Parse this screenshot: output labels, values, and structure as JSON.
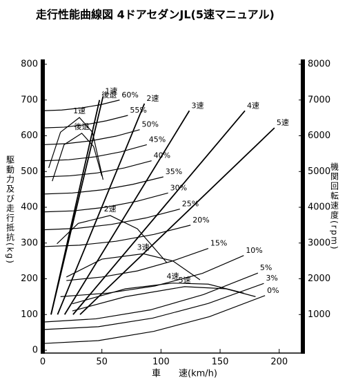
{
  "chart_data": {
    "type": "line",
    "title": "走行性能曲線図 4ドアセダンJL(5速マニュアル)",
    "x_label": "車　　速(km/h)",
    "y_label": "駆動力及び走行抵抗(kg)",
    "y2_label": "機関回転速度(rpm)",
    "color": "#000000",
    "xlim": [
      0,
      220
    ],
    "xticks": [
      0,
      50,
      100,
      150,
      200
    ],
    "ylim": [
      0,
      800
    ],
    "yticks": [
      0,
      100,
      200,
      300,
      400,
      500,
      600,
      700,
      800
    ],
    "y2lim": [
      0,
      8000
    ],
    "y2ticks": [
      1000,
      2000,
      3000,
      4000,
      5000,
      6000,
      7000,
      8000
    ],
    "series": [
      {
        "name": "60%",
        "x": [
          0,
          16,
          33,
          49,
          65
        ],
        "values": [
          670,
          672,
          678,
          687,
          700
        ]
      },
      {
        "name": "55%",
        "x": [
          0,
          18,
          36,
          54,
          72
        ],
        "values": [
          622,
          624,
          631,
          642,
          657
        ]
      },
      {
        "name": "50%",
        "x": [
          0,
          20,
          41,
          62,
          82
        ],
        "values": [
          575,
          578,
          586,
          599,
          617
        ]
      },
      {
        "name": "45%",
        "x": [
          0,
          22,
          44,
          66,
          88
        ],
        "values": [
          530,
          533,
          541,
          555,
          575
        ]
      },
      {
        "name": "40%",
        "x": [
          0,
          23,
          46,
          69,
          92
        ],
        "values": [
          485,
          488,
          496,
          510,
          530
        ]
      },
      {
        "name": "35%",
        "x": [
          0,
          25,
          51,
          76,
          102
        ],
        "values": [
          437,
          440,
          449,
          464,
          485
        ]
      },
      {
        "name": "30%",
        "x": [
          0,
          26,
          53,
          80,
          106
        ],
        "values": [
          387,
          390,
          400,
          417,
          440
        ]
      },
      {
        "name": "25%",
        "x": [
          0,
          29,
          58,
          87,
          116
        ],
        "values": [
          337,
          341,
          352,
          370,
          395
        ]
      },
      {
        "name": "20%",
        "x": [
          0,
          31,
          62,
          94,
          125
        ],
        "values": [
          290,
          294,
          305,
          324,
          350
        ]
      },
      {
        "name": "15%",
        "x": [
          20,
          50,
          80,
          110,
          140
        ],
        "values": [
          195,
          205,
          222,
          250,
          285
        ]
      },
      {
        "name": "10%",
        "x": [
          15,
          55,
          95,
          135,
          170
        ],
        "values": [
          150,
          160,
          180,
          215,
          265
        ]
      },
      {
        "name": "5%",
        "x": [
          0,
          45,
          91,
          136,
          182
        ],
        "values": [
          79,
          88,
          113,
          156,
          216
        ]
      },
      {
        "name": "3%",
        "x": [
          0,
          47,
          93,
          140,
          187
        ],
        "values": [
          58,
          66,
          90,
          131,
          187
        ]
      },
      {
        "name": "0%",
        "x": [
          0,
          47,
          94,
          141,
          188
        ],
        "values": [
          19,
          27,
          53,
          94,
          153
        ]
      },
      {
        "name": "1速",
        "x": [
          5,
          15,
          31,
          42,
          51
        ],
        "values": [
          510,
          610,
          651,
          610,
          477
        ]
      },
      {
        "name": "後退",
        "x": [
          8,
          18,
          33,
          43,
          50
        ],
        "values": [
          473,
          575,
          607,
          570,
          487
        ]
      },
      {
        "name": "2速",
        "x": [
          12,
          30,
          57,
          80,
          105
        ],
        "values": [
          298,
          355,
          377,
          340,
          245
        ]
      },
      {
        "name": "3速",
        "x": [
          20,
          50,
          85,
          110,
          133
        ],
        "values": [
          205,
          255,
          270,
          250,
          197
        ]
      },
      {
        "name": "4速",
        "x": [
          25,
          70,
          110,
          140,
          170
        ],
        "values": [
          130,
          172,
          188,
          185,
          160
        ]
      },
      {
        "name": "5速",
        "x": [
          25,
          70,
          120,
          155,
          180
        ],
        "values": [
          110,
          150,
          178,
          172,
          150
        ]
      },
      {
        "name": "1速",
        "axis": "y2",
        "x": [
          7,
          51
        ],
        "values": [
          1000,
          7100
        ]
      },
      {
        "name": "後退",
        "axis": "y2",
        "x": [
          7,
          48
        ],
        "values": [
          1000,
          7000
        ]
      },
      {
        "name": "2速",
        "axis": "y2",
        "x": [
          12.5,
          86
        ],
        "values": [
          1000,
          6900
        ]
      },
      {
        "name": "3速",
        "axis": "y2",
        "x": [
          18.5,
          124
        ],
        "values": [
          1000,
          6700
        ]
      },
      {
        "name": "4速",
        "axis": "y2",
        "x": [
          25.6,
          171
        ],
        "values": [
          1000,
          6700
        ]
      },
      {
        "name": "5速",
        "axis": "y2",
        "x": [
          31.5,
          196
        ],
        "values": [
          1000,
          6220
        ]
      }
    ]
  }
}
